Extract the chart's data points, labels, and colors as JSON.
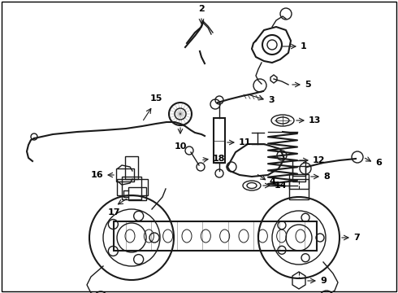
{
  "background_color": "#ffffff",
  "border_color": "#000000",
  "fig_width": 4.9,
  "fig_height": 3.6,
  "dpi": 100,
  "line_color": "#1a1a1a",
  "text_color": "#000000",
  "label_fontsize": 8,
  "label_fontweight": "bold"
}
